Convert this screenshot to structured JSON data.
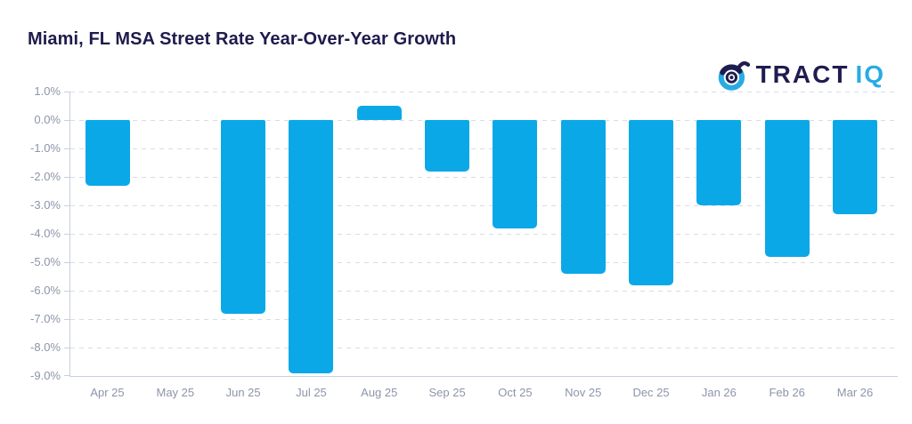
{
  "header": {
    "title": "Miami, FL MSA Street Rate Year-Over-Year Growth"
  },
  "logo": {
    "icon": "tractiq-bullseye-icon",
    "brand_primary": "TRACT",
    "brand_secondary": "IQ",
    "primary_color": "#1f1c4f",
    "secondary_color": "#29abe2"
  },
  "chart_data": {
    "type": "bar",
    "title": "Miami, FL MSA Street Rate Year-Over-Year Growth",
    "categories": [
      "Apr 25",
      "May 25",
      "Jun 25",
      "Jul 25",
      "Aug 25",
      "Sep 25",
      "Oct 25",
      "Nov 25",
      "Dec 25",
      "Jan 26",
      "Feb 26",
      "Mar 26"
    ],
    "values": [
      -2.3,
      0.0,
      -6.8,
      -8.9,
      0.5,
      -1.8,
      -3.8,
      -5.4,
      -5.8,
      -3.0,
      -4.8,
      -3.3
    ],
    "unit": "%",
    "xlabel": "",
    "ylabel": "",
    "ylim": [
      -9.0,
      1.0
    ],
    "y_tick_values": [
      1,
      0,
      -1,
      -2,
      -3,
      -4,
      -5,
      -6,
      -7,
      -8,
      -9
    ],
    "y_tick_labels": [
      "1.0%",
      "0.0%",
      "-1.0%",
      "-2.0%",
      "-3.0%",
      "-4.0%",
      "-5.0%",
      "-6.0%",
      "-7.0%",
      "-8.0%",
      "-9.0%"
    ],
    "grid": "horizontal-dashed",
    "legend": "none",
    "bar_color": "#0ba8e8",
    "axis_label_color": "#8d95a9",
    "gridline_color": "#d9dcea",
    "axis_line_color": "#c9cfdf"
  }
}
